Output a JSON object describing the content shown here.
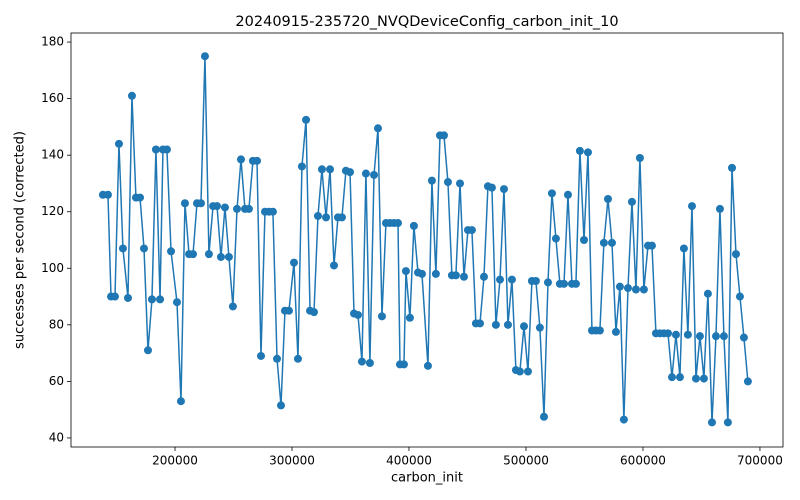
{
  "chart_data": {
    "type": "line",
    "title": "20240915-235720_NVQDeviceConfig_carbon_init_10",
    "x_label": "carbon_init",
    "y_label": "successes per second (corrected)",
    "color": "#1f77b4",
    "xlim": [
      111100,
      719700
    ],
    "ylim": [
      36.8,
      183.2
    ],
    "xticks": [
      200000,
      300000,
      400000,
      500000,
      600000,
      700000
    ],
    "yticks": [
      40,
      60,
      80,
      100,
      120,
      140,
      160,
      180
    ],
    "x": [
      138400,
      142700,
      145300,
      148700,
      152100,
      155500,
      159800,
      163200,
      166600,
      170100,
      173500,
      176900,
      180300,
      183700,
      187200,
      189700,
      193100,
      196600,
      201700,
      205100,
      208500,
      212000,
      215400,
      218800,
      222200,
      225600,
      229000,
      232500,
      235900,
      239300,
      242700,
      246100,
      249500,
      253000,
      256400,
      259800,
      263200,
      266600,
      270100,
      273500,
      276900,
      280300,
      283700,
      287200,
      290600,
      294000,
      297400,
      301700,
      305100,
      308500,
      312000,
      315400,
      318800,
      322200,
      325600,
      329100,
      332500,
      335900,
      339300,
      342700,
      346100,
      349600,
      353000,
      356400,
      359800,
      363200,
      366600,
      370100,
      373500,
      376900,
      380300,
      383700,
      387200,
      390600,
      392300,
      395700,
      397400,
      400800,
      404200,
      407700,
      411100,
      416200,
      419600,
      423000,
      426500,
      429900,
      433300,
      436700,
      440100,
      443600,
      447000,
      450400,
      453800,
      457200,
      460700,
      464100,
      467500,
      470900,
      474300,
      477800,
      481200,
      484600,
      488000,
      491400,
      494800,
      498300,
      501700,
      505100,
      508500,
      511900,
      515400,
      518800,
      522200,
      525600,
      529000,
      532500,
      535900,
      539300,
      542700,
      546100,
      549600,
      553000,
      556400,
      559800,
      563200,
      566600,
      570100,
      573500,
      576900,
      580300,
      583700,
      587200,
      590600,
      594000,
      597400,
      600800,
      604300,
      607700,
      611100,
      614500,
      617900,
      621400,
      624800,
      628200,
      631600,
      635000,
      638400,
      641900,
      645300,
      648700,
      652100,
      655500,
      659000,
      662400,
      665800,
      669200,
      672600,
      676100,
      679500,
      682900,
      686300,
      689700
    ],
    "values": [
      126,
      126,
      90,
      90,
      144,
      107,
      89.5,
      161,
      125,
      125,
      107,
      71,
      89,
      142,
      89,
      142,
      142,
      106,
      88,
      53,
      123,
      105,
      105,
      123,
      123,
      175,
      105,
      122,
      122,
      104,
      121.5,
      104,
      86.5,
      121,
      138.5,
      121,
      121,
      138,
      138,
      69,
      120,
      120,
      120,
      68,
      51.5,
      85,
      85,
      102,
      68,
      136,
      152.5,
      85,
      84.5,
      118.5,
      135,
      118,
      135,
      101,
      118,
      118,
      134.5,
      134,
      84,
      83.5,
      67,
      133.5,
      66.5,
      133,
      149.5,
      83,
      116,
      116,
      116,
      116,
      66,
      66,
      99,
      82.5,
      115,
      98.5,
      98,
      65.5,
      131,
      98,
      147,
      147,
      130.5,
      97.5,
      97.5,
      130,
      97,
      113.5,
      113.5,
      80.5,
      80.5,
      97,
      129,
      128.5,
      80,
      96,
      128,
      80,
      96,
      64,
      63.5,
      79.5,
      63.5,
      95.5,
      95.5,
      79,
      47.5,
      95,
      126.5,
      110.5,
      94.5,
      94.5,
      126,
      94.5,
      94.5,
      141.5,
      110,
      141,
      78,
      78,
      78,
      109,
      124.5,
      109,
      77.5,
      93.5,
      46.5,
      93,
      123.5,
      92.5,
      139,
      92.5,
      108,
      108,
      77,
      77,
      77,
      77,
      61.5,
      76.5,
      61.5,
      107,
      76.5,
      122,
      61,
      76,
      61,
      91,
      45.5,
      76,
      121,
      76,
      45.5,
      135.5,
      105,
      90,
      75.5,
      60
    ]
  }
}
